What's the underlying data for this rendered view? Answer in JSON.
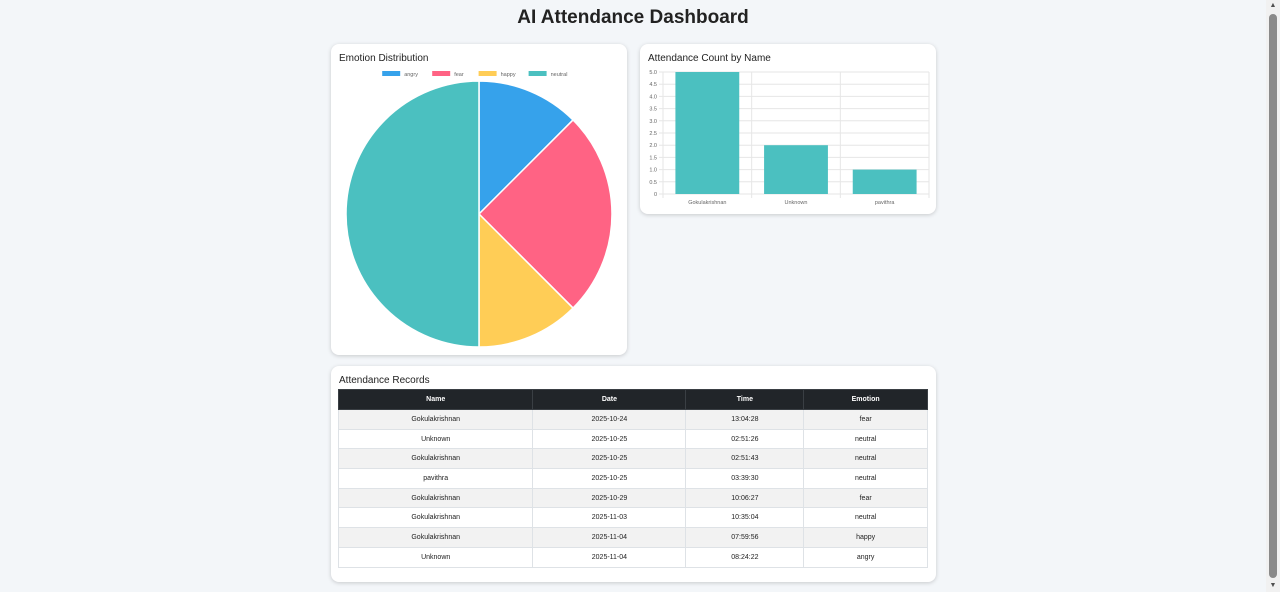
{
  "page": {
    "title": "AI Attendance Dashboard"
  },
  "emotion_chart": {
    "title": "Emotion Distribution",
    "chart_data": {
      "type": "pie",
      "labels": [
        "angry",
        "fear",
        "happy",
        "neutral"
      ],
      "values": [
        1,
        2,
        1,
        4
      ],
      "colors": [
        "#36a2eb",
        "#ff6384",
        "#ffcd56",
        "#4bc0c0"
      ],
      "legend": "top"
    }
  },
  "attendance_chart": {
    "title": "Attendance Count by Name",
    "chart_data": {
      "type": "bar",
      "categories": [
        "Gokulakrishnan",
        "Unknown",
        "pavithra"
      ],
      "values": [
        5,
        2,
        1
      ],
      "ylim": [
        0,
        5
      ],
      "yticks": [
        "0",
        "0.5",
        "1.0",
        "1.5",
        "2.0",
        "2.5",
        "3.0",
        "3.5",
        "4.0",
        "4.5",
        "5.0"
      ],
      "color": "#4bc0c0",
      "grid": true
    }
  },
  "records": {
    "title": "Attendance Records",
    "columns": [
      "Name",
      "Date",
      "Time",
      "Emotion"
    ],
    "rows": [
      [
        "Gokulakrishnan",
        "2025-10-24",
        "13:04:28",
        "fear"
      ],
      [
        "Unknown",
        "2025-10-25",
        "02:51:26",
        "neutral"
      ],
      [
        "Gokulakrishnan",
        "2025-10-25",
        "02:51:43",
        "neutral"
      ],
      [
        "pavithra",
        "2025-10-25",
        "03:39:30",
        "neutral"
      ],
      [
        "Gokulakrishnan",
        "2025-10-29",
        "10:06:27",
        "fear"
      ],
      [
        "Gokulakrishnan",
        "2025-11-03",
        "10:35:04",
        "neutral"
      ],
      [
        "Gokulakrishnan",
        "2025-11-04",
        "07:59:56",
        "happy"
      ],
      [
        "Unknown",
        "2025-11-04",
        "08:24:22",
        "angry"
      ]
    ]
  },
  "scrollbar": {
    "up_icon": "triangle-up-icon",
    "down_icon": "triangle-down-icon"
  }
}
